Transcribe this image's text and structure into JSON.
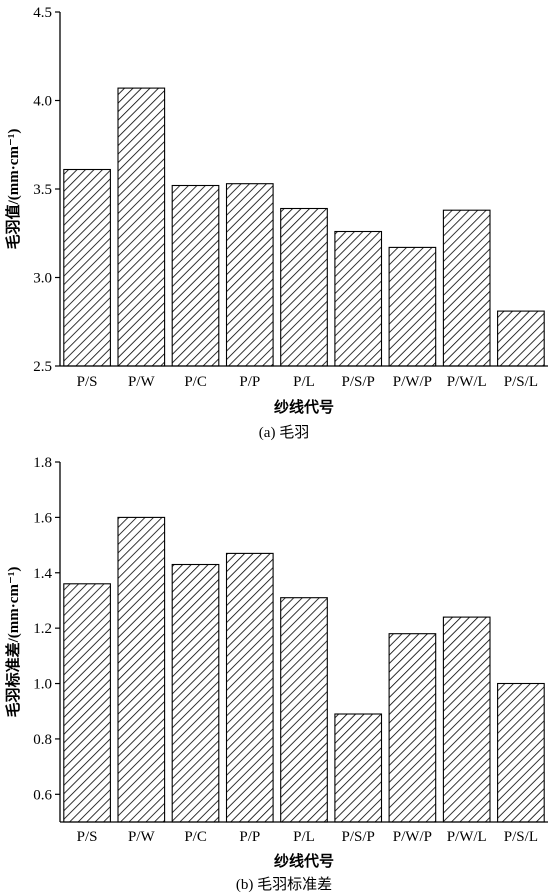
{
  "chart_data": [
    {
      "type": "bar",
      "caption": "(a) 毛羽",
      "xlabel": "纱线代号",
      "ylabel": "毛羽值/(mm·cm⁻¹)",
      "categories": [
        "P/S",
        "P/W",
        "P/C",
        "P/P",
        "P/L",
        "P/S/P",
        "P/W/P",
        "P/W/L",
        "P/S/L"
      ],
      "values": [
        3.61,
        4.07,
        3.52,
        3.53,
        3.39,
        3.26,
        3.17,
        3.38,
        2.81
      ],
      "ylim": [
        2.5,
        4.5
      ],
      "yticks": [
        "2.5",
        "3.0",
        "3.5",
        "4.0",
        "4.5"
      ],
      "fill": "hatched",
      "grid": false
    },
    {
      "type": "bar",
      "caption": "(b) 毛羽标准差",
      "xlabel": "纱线代号",
      "ylabel": "毛羽标准差/(mm·cm⁻¹)",
      "categories": [
        "P/S",
        "P/W",
        "P/C",
        "P/P",
        "P/L",
        "P/S/P",
        "P/W/P",
        "P/W/L",
        "P/S/L"
      ],
      "values": [
        1.36,
        1.6,
        1.43,
        1.47,
        1.31,
        0.89,
        1.18,
        1.24,
        1.0
      ],
      "ylim": [
        0.5,
        1.8
      ],
      "yticks": [
        "0.6",
        "0.8",
        "1.0",
        "1.2",
        "1.4",
        "1.6",
        "1.8"
      ],
      "fill": "hatched",
      "grid": false
    }
  ]
}
